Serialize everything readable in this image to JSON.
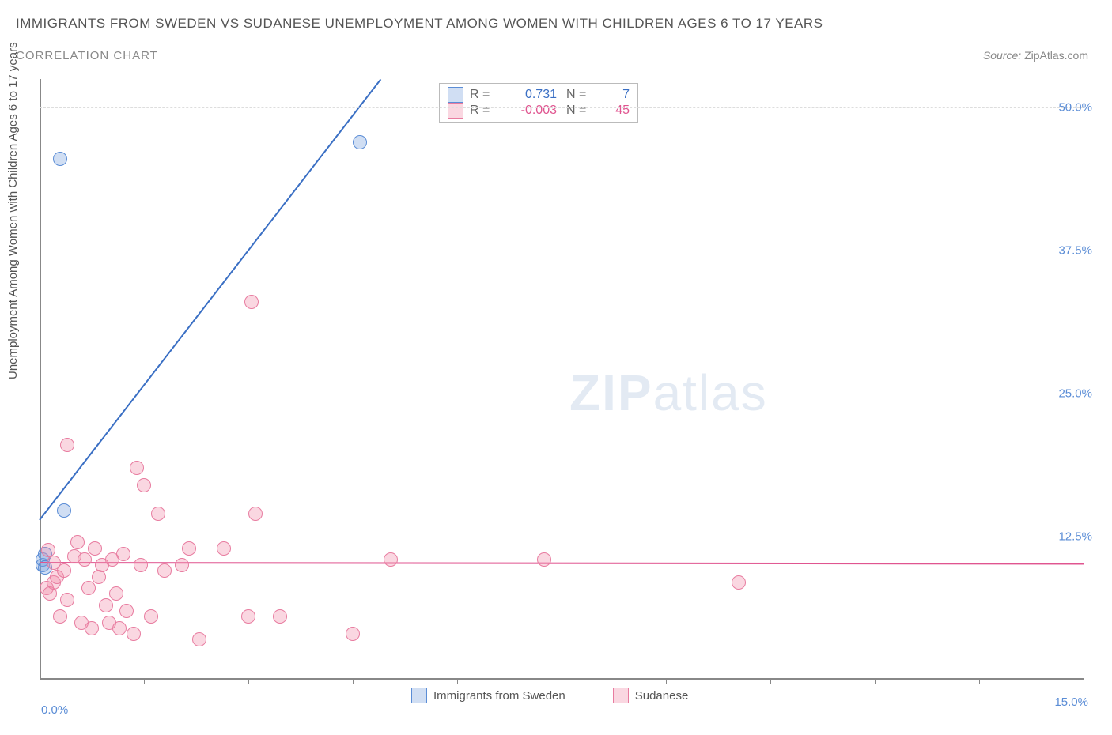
{
  "title": "IMMIGRANTS FROM SWEDEN VS SUDANESE UNEMPLOYMENT AMONG WOMEN WITH CHILDREN AGES 6 TO 17 YEARS",
  "subtitle": "CORRELATION CHART",
  "source_label": "Source:",
  "source_value": "ZipAtlas.com",
  "y_axis_label": "Unemployment Among Women with Children Ages 6 to 17 years",
  "watermark_bold": "ZIP",
  "watermark_light": "atlas",
  "chart": {
    "type": "scatter",
    "xlim": [
      0,
      15
    ],
    "ylim": [
      0,
      52.5
    ],
    "x_tick_left": "0.0%",
    "x_tick_right": "15.0%",
    "x_tick_positions": [
      1.5,
      3.0,
      4.5,
      6.0,
      7.5,
      9.0,
      10.5,
      12.0,
      13.5
    ],
    "y_ticks": [
      {
        "v": 12.5,
        "label": "12.5%"
      },
      {
        "v": 25.0,
        "label": "25.0%"
      },
      {
        "v": 37.5,
        "label": "37.5%"
      },
      {
        "v": 50.0,
        "label": "50.0%"
      }
    ],
    "background_color": "#ffffff",
    "grid_color": "#dddddd",
    "axis_color": "#888888",
    "tick_label_color": "#5b8dd6",
    "series": [
      {
        "name": "Immigrants from Sweden",
        "fill": "rgba(120,160,220,0.35)",
        "stroke": "#5b8dd6",
        "points": [
          [
            0.05,
            10.0
          ],
          [
            0.05,
            10.5
          ],
          [
            0.08,
            9.8
          ],
          [
            0.08,
            11.0
          ],
          [
            0.3,
            45.5
          ],
          [
            0.35,
            14.8
          ],
          [
            4.6,
            47.0
          ]
        ],
        "trend": {
          "x1": 0,
          "y1": 14.0,
          "x2": 4.9,
          "y2": 52.5,
          "color": "#3a6fc4",
          "width": 2
        },
        "corr": {
          "r": "0.731",
          "n": "7"
        }
      },
      {
        "name": "Sudanese",
        "fill": "rgba(240,140,170,0.35)",
        "stroke": "#e87ca0",
        "points": [
          [
            0.1,
            8.0
          ],
          [
            0.15,
            7.5
          ],
          [
            0.2,
            10.2
          ],
          [
            0.2,
            8.5
          ],
          [
            0.25,
            9.0
          ],
          [
            0.3,
            5.5
          ],
          [
            0.35,
            9.5
          ],
          [
            0.4,
            20.5
          ],
          [
            0.4,
            7.0
          ],
          [
            0.5,
            10.8
          ],
          [
            0.55,
            12.0
          ],
          [
            0.6,
            5.0
          ],
          [
            0.65,
            10.5
          ],
          [
            0.7,
            8.0
          ],
          [
            0.75,
            4.5
          ],
          [
            0.8,
            11.5
          ],
          [
            0.85,
            9.0
          ],
          [
            0.9,
            10.0
          ],
          [
            0.95,
            6.5
          ],
          [
            1.0,
            5.0
          ],
          [
            1.05,
            10.5
          ],
          [
            1.1,
            7.5
          ],
          [
            1.15,
            4.5
          ],
          [
            1.2,
            11.0
          ],
          [
            1.25,
            6.0
          ],
          [
            1.35,
            4.0
          ],
          [
            1.4,
            18.5
          ],
          [
            1.45,
            10.0
          ],
          [
            1.5,
            17.0
          ],
          [
            1.6,
            5.5
          ],
          [
            1.7,
            14.5
          ],
          [
            1.8,
            9.5
          ],
          [
            2.05,
            10.0
          ],
          [
            2.15,
            11.5
          ],
          [
            2.3,
            3.5
          ],
          [
            2.65,
            11.5
          ],
          [
            3.0,
            5.5
          ],
          [
            3.05,
            33.0
          ],
          [
            3.1,
            14.5
          ],
          [
            3.45,
            5.5
          ],
          [
            4.5,
            4.0
          ],
          [
            5.05,
            10.5
          ],
          [
            7.25,
            10.5
          ],
          [
            10.05,
            8.5
          ],
          [
            0.12,
            11.3
          ]
        ],
        "trend": {
          "x1": 0,
          "y1": 10.3,
          "x2": 15,
          "y2": 10.2,
          "color": "#e05590",
          "width": 2
        },
        "corr": {
          "r": "-0.003",
          "n": "45"
        }
      }
    ],
    "legend_corr_labels": {
      "r": "R =",
      "n": "N ="
    }
  }
}
